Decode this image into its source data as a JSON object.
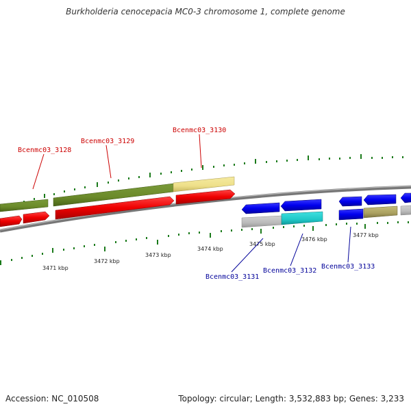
{
  "title": "Burkholderia cenocepacia MC0-3 chromosome 1, complete genome",
  "footer": {
    "accession": "Accession: NC_010508",
    "summary": "Topology: circular; Length: 3,532,883 bp; Genes: 3,233"
  },
  "colors": {
    "forward_label": "#cc0000",
    "reverse_label": "#000099",
    "backbone": "#888888",
    "tick": "#1a7a1a"
  },
  "scale_ticks": [
    "3471 kbp",
    "3472 kbp",
    "3473 kbp",
    "3474 kbp",
    "3475 kbp",
    "3476 kbp",
    "3477 kbp"
  ],
  "gene_labels": {
    "forward": [
      "Bcenmc03_3128",
      "Bcenmc03_3129",
      "Bcenmc03_3130"
    ],
    "reverse": [
      "Bcenmc03_3131",
      "Bcenmc03_3132",
      "Bcenmc03_3133"
    ]
  }
}
